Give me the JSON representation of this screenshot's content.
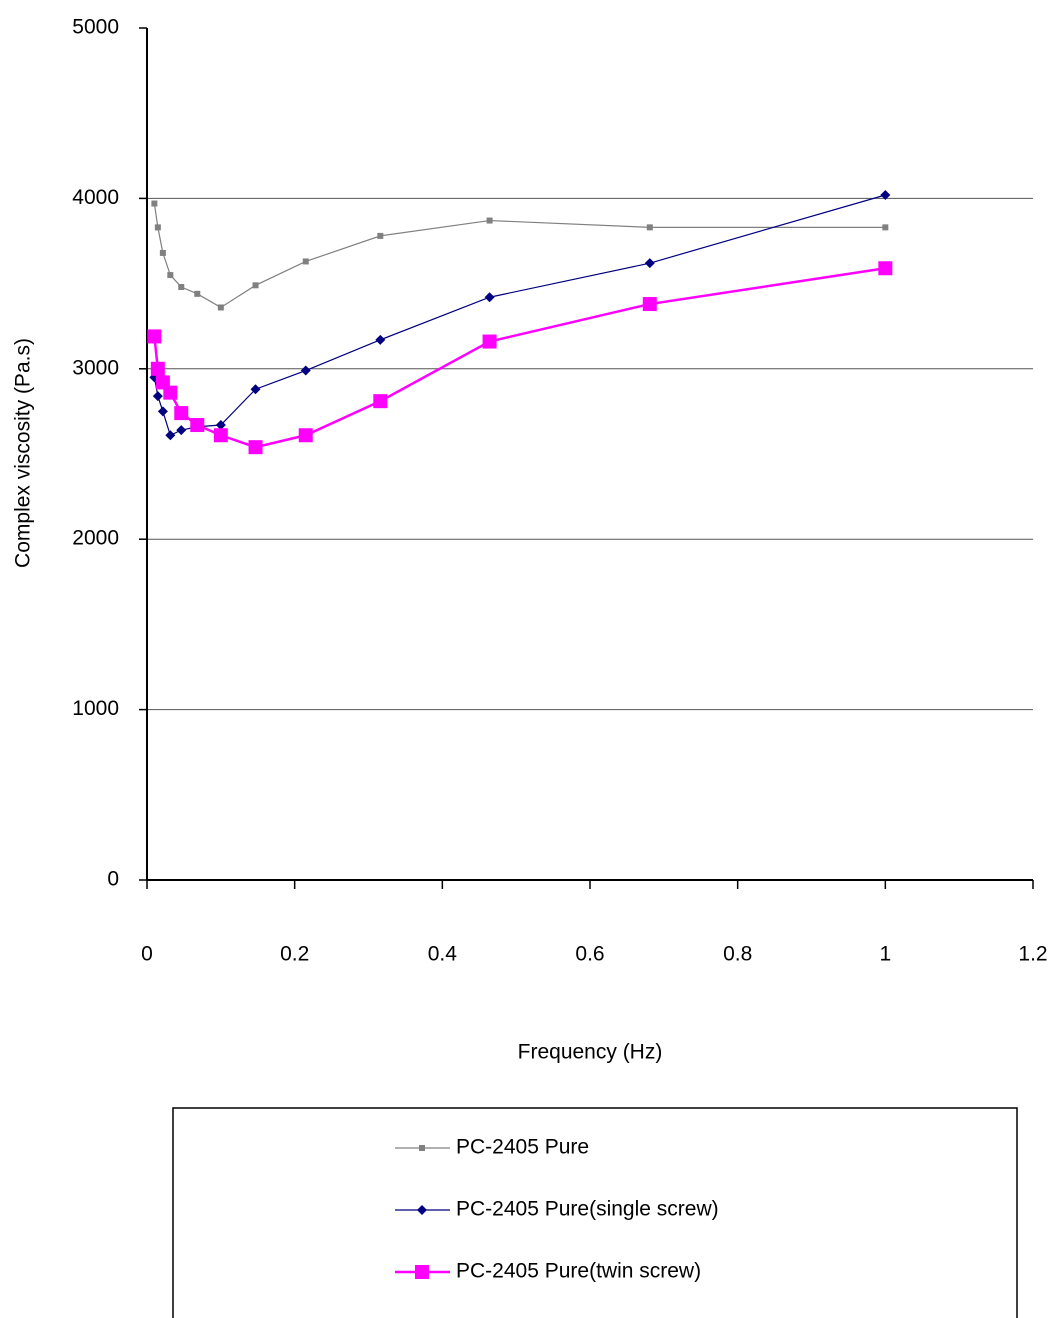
{
  "chart_data": {
    "type": "line",
    "x_label": "Frequency (Hz)",
    "y_label": "Complex viscosity (Pa.s)",
    "x": [
      0.01,
      0.0147,
      0.0215,
      0.0316,
      0.0464,
      0.0681,
      0.1,
      0.147,
      0.215,
      0.316,
      0.464,
      0.681,
      1
    ],
    "series": [
      {
        "name": "PC-2405 Pure",
        "color": "#808080",
        "marker": "square-small",
        "values": [
          3970,
          3830,
          3680,
          3550,
          3480,
          3440,
          3360,
          3490,
          3630,
          3780,
          3870,
          3830,
          3830
        ]
      },
      {
        "name": "PC-2405 Pure(single screw)",
        "color": "#000080",
        "marker": "diamond",
        "values": [
          2950,
          2840,
          2750,
          2610,
          2640,
          2660,
          2670,
          2880,
          2990,
          3170,
          3420,
          3620,
          4020
        ]
      },
      {
        "name": "PC-2405 Pure(twin screw)",
        "color": "#ff00ff",
        "marker": "square-large",
        "values": [
          3190,
          3000,
          2920,
          2860,
          2740,
          2670,
          2610,
          2540,
          2610,
          2810,
          3160,
          3380,
          3590
        ]
      }
    ],
    "xlim": [
      0,
      1.2
    ],
    "xticks": [
      0,
      0.2,
      0.4,
      0.6,
      0.8,
      1,
      1.2
    ],
    "ylim": [
      0,
      5000
    ],
    "yticks": [
      0,
      1000,
      2000,
      3000,
      4000,
      5000
    ],
    "grid": true,
    "legend": "bottom"
  }
}
